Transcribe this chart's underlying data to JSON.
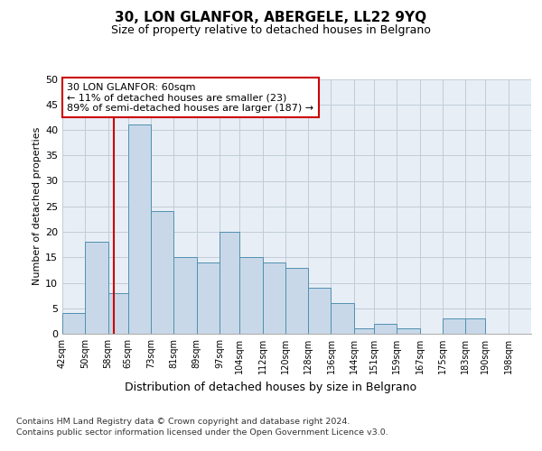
{
  "title": "30, LON GLANFOR, ABERGELE, LL22 9YQ",
  "subtitle": "Size of property relative to detached houses in Belgrano",
  "xlabel_bottom": "Distribution of detached houses by size in Belgrano",
  "ylabel": "Number of detached properties",
  "categories": [
    "42sqm",
    "50sqm",
    "58sqm",
    "65sqm",
    "73sqm",
    "81sqm",
    "89sqm",
    "97sqm",
    "104sqm",
    "112sqm",
    "120sqm",
    "128sqm",
    "136sqm",
    "144sqm",
    "151sqm",
    "159sqm",
    "167sqm",
    "175sqm",
    "183sqm",
    "190sqm",
    "198sqm"
  ],
  "values": [
    4,
    18,
    8,
    41,
    24,
    15,
    14,
    20,
    15,
    14,
    13,
    9,
    6,
    1,
    2,
    1,
    0,
    3,
    3,
    0,
    0
  ],
  "bar_color": "#c8d8e8",
  "bar_edge_color": "#5090b0",
  "bar_edge_width": 0.7,
  "grid_color": "#c0ccd8",
  "background_color": "#e8eef6",
  "red_line_x": 60,
  "annotation_title": "30 LON GLANFOR: 60sqm",
  "annotation_line1": "← 11% of detached houses are smaller (23)",
  "annotation_line2": "89% of semi-detached houses are larger (187) →",
  "annotation_box_color": "#ffffff",
  "annotation_box_edge": "#cc0000",
  "footer1": "Contains HM Land Registry data © Crown copyright and database right 2024.",
  "footer2": "Contains public sector information licensed under the Open Government Licence v3.0.",
  "ylim": [
    0,
    50
  ],
  "yticks": [
    0,
    5,
    10,
    15,
    20,
    25,
    30,
    35,
    40,
    45,
    50
  ],
  "bin_edges": [
    42,
    50,
    58,
    65,
    73,
    81,
    89,
    97,
    104,
    112,
    120,
    128,
    136,
    144,
    151,
    159,
    167,
    175,
    183,
    190,
    198,
    206
  ]
}
